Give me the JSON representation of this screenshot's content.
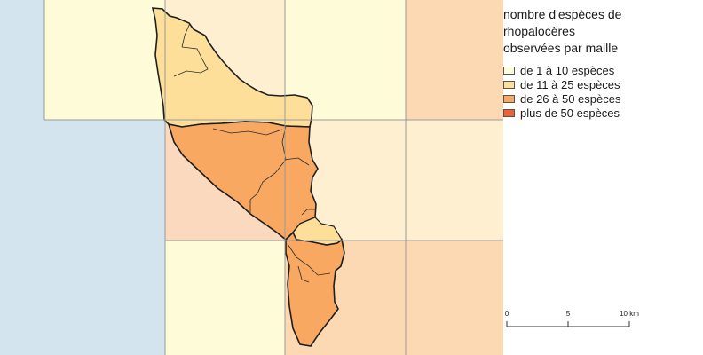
{
  "legend": {
    "title_lines": [
      "nombre d'espèces de",
      "rhopalocères",
      "observées par maille"
    ],
    "items": [
      {
        "label": "de 1 à 10 espèces",
        "color": "#fefdd9"
      },
      {
        "label": "de 11 à 25 espèces",
        "color": "#fddf9a"
      },
      {
        "label": "de 26 à 50 espèces",
        "color": "#f8a861"
      },
      {
        "label": "plus de 50 espèces",
        "color": "#f06036"
      }
    ]
  },
  "scale": {
    "ticks": [
      "0",
      "5",
      "10 km"
    ]
  },
  "colors": {
    "sea": "#d3e4ee",
    "outline": "#1e1e1e",
    "grid_line": "#9a9a9a"
  }
}
